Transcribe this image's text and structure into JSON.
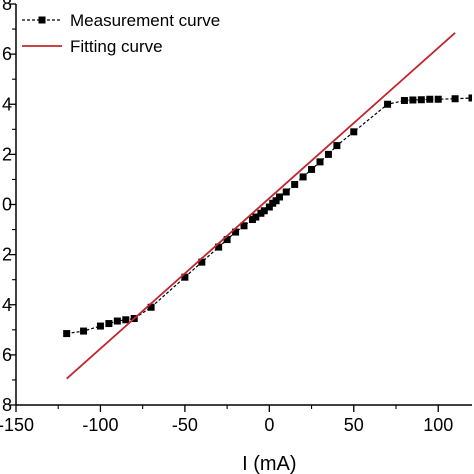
{
  "chart_data": {
    "type": "line",
    "xlabel": "I (mA)",
    "ylabel": "",
    "xlim": [
      -150,
      120
    ],
    "ylim": [
      -8,
      8
    ],
    "x_ticks": [
      -150,
      -100,
      -50,
      0,
      50,
      100
    ],
    "x_tick_labels": [
      "-150",
      "-100",
      "-50",
      "0",
      "50",
      "100"
    ],
    "y_ticks": [
      -8,
      -6,
      -4,
      -2,
      0,
      2,
      4,
      6,
      8
    ],
    "y_tick_labels": [
      "8",
      "6",
      "4",
      "2",
      "0",
      "2",
      "4",
      "6",
      "8"
    ],
    "legend": {
      "placement": "top-left"
    },
    "series": [
      {
        "name": "Measurement curve",
        "style": "dashed-line-square-markers",
        "color": "#000000",
        "points": [
          [
            -120,
            -5.15
          ],
          [
            -110,
            -5.05
          ],
          [
            -100,
            -4.85
          ],
          [
            -95,
            -4.75
          ],
          [
            -90,
            -4.65
          ],
          [
            -85,
            -4.6
          ],
          [
            -80,
            -4.55
          ],
          [
            -70,
            -4.1
          ],
          [
            -50,
            -2.9
          ],
          [
            -40,
            -2.3
          ],
          [
            -30,
            -1.7
          ],
          [
            -25,
            -1.4
          ],
          [
            -20,
            -1.1
          ],
          [
            -15,
            -0.85
          ],
          [
            -10,
            -0.6
          ],
          [
            -8,
            -0.5
          ],
          [
            -5,
            -0.35
          ],
          [
            -3,
            -0.25
          ],
          [
            0,
            -0.1
          ],
          [
            2,
            0.05
          ],
          [
            4,
            0.15
          ],
          [
            6,
            0.3
          ],
          [
            10,
            0.5
          ],
          [
            15,
            0.8
          ],
          [
            20,
            1.1
          ],
          [
            25,
            1.4
          ],
          [
            30,
            1.7
          ],
          [
            35,
            2.0
          ],
          [
            40,
            2.35
          ],
          [
            50,
            2.9
          ],
          [
            70,
            4.0
          ],
          [
            80,
            4.15
          ],
          [
            85,
            4.17
          ],
          [
            90,
            4.18
          ],
          [
            95,
            4.2
          ],
          [
            100,
            4.2
          ],
          [
            110,
            4.22
          ],
          [
            120,
            4.25
          ]
        ]
      },
      {
        "name": "Fitting curve",
        "style": "solid-line",
        "color": "#c0272d",
        "points": [
          [
            -120,
            -6.95
          ],
          [
            110,
            6.85
          ]
        ]
      }
    ]
  }
}
